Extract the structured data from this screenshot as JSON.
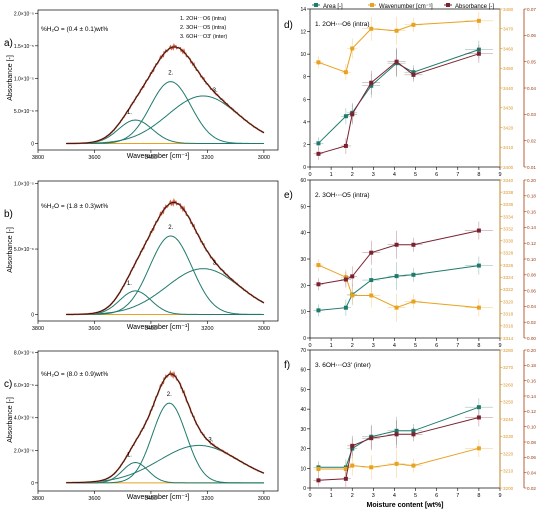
{
  "colors": {
    "measured": "#c9543a",
    "fit_total": "#2b1610",
    "peak": "#1f7a6c",
    "baseline": "#e8a21f",
    "area": "#1f7a6c",
    "wavenumber": "#e8a21f",
    "absorbance": "#7a2230",
    "wn_axis_text": "#d9962a",
    "abs_axis_text": "#9c3b12"
  },
  "chart_data": [
    {
      "type": "line",
      "panel": "a)",
      "annotation": "%H₂O = (0.4 ± 0.1)wt%",
      "xlabel": "Wavenumber [cm⁻¹]",
      "ylabel": "Absorbance [-]",
      "xlim": [
        3800,
        2950
      ],
      "xticks": [
        "3800",
        "3600",
        "3400",
        "3200",
        "3000"
      ],
      "ylim": [
        -1e-06,
        2.05e-05
      ],
      "yticks": [
        "0",
        "5.0×10⁻⁶",
        "1.0×10⁻⁵",
        "1.5×10⁻⁵",
        "2.0×10⁻⁵"
      ],
      "legend": [
        "1.   2OH⋯O6 (intra)",
        "2.   3OH⋯O5 (intra)",
        "3.   6OH⋯O3' (inter)"
      ],
      "peak_labels": [
        "1.",
        "2.",
        "3."
      ],
      "peaks": [
        {
          "center": 3455,
          "height": 3.6e-06,
          "width": 60
        },
        {
          "center": 3330,
          "height": 9.5e-06,
          "width": 72
        },
        {
          "center": 3215,
          "height": 7.3e-06,
          "width": 125
        }
      ]
    },
    {
      "type": "line",
      "panel": "b)",
      "annotation": "%H₂O = (1.8 ± 0.3)wt%",
      "xlabel": "Wavenumber [cm⁻¹]",
      "ylabel": "Absorbance [-]",
      "xlim": [
        3800,
        2950
      ],
      "xticks": [
        "3800",
        "3600",
        "3400",
        "3200",
        "3000"
      ],
      "ylim": [
        -5e-07,
        1.02e-05
      ],
      "yticks": [
        "0",
        "5.0×10⁻⁶",
        "1.0×10⁻⁵"
      ],
      "peak_labels": [
        "1.",
        "2.",
        "3."
      ],
      "peaks": [
        {
          "center": 3455,
          "height": 1.8e-06,
          "width": 55
        },
        {
          "center": 3330,
          "height": 6e-06,
          "width": 75
        },
        {
          "center": 3215,
          "height": 3.5e-06,
          "width": 130
        }
      ]
    },
    {
      "type": "line",
      "panel": "c)",
      "annotation": "%H₂O = (8.0 ± 0.9)wt%",
      "xlabel": "Wavenumber [cm⁻¹]",
      "ylabel": "Absorbance [-]",
      "xlim": [
        3800,
        2950
      ],
      "xticks": [
        "3800",
        "3600",
        "3400",
        "3200",
        "3000"
      ],
      "ylim": [
        -5e-07,
        8.1e-06
      ],
      "yticks": [
        "0",
        "2.0×10⁻⁶",
        "4.0×10⁻⁶",
        "6.0×10⁻⁶",
        "8.0×10⁻⁶"
      ],
      "peak_labels": [
        "1.",
        "2.",
        "3."
      ],
      "peaks": [
        {
          "center": 3455,
          "height": 1.25e-06,
          "width": 45
        },
        {
          "center": 3335,
          "height": 4.9e-06,
          "width": 60
        },
        {
          "center": 3230,
          "height": 2.3e-06,
          "width": 140
        }
      ]
    },
    {
      "type": "line",
      "panel": "d)",
      "title": "1. 2OH⋯O6 (intra)",
      "legend": [
        "Area [-]",
        "Wavenumber [cm⁻¹]",
        "Absorbance [-]"
      ],
      "x": [
        0.4,
        1.7,
        2.0,
        2.9,
        4.1,
        4.9,
        8.0
      ],
      "area": [
        2.1,
        4.5,
        4.8,
        7.2,
        9.2,
        8.4,
        10.4
      ],
      "area_ylim": [
        0,
        14
      ],
      "area_yticks": [
        "0",
        "2",
        "4",
        "6",
        "8",
        "10",
        "12",
        "14"
      ],
      "wavenumber": [
        3453,
        3448,
        3460,
        3470,
        3469,
        3472,
        3474
      ],
      "wn_ylim": [
        3400,
        3480
      ],
      "wn_yticks": [
        "3400",
        "3410",
        "3420",
        "3430",
        "3440",
        "3450",
        "3460",
        "3470",
        "3480"
      ],
      "absorbance": [
        0.015,
        0.018,
        0.03,
        0.042,
        0.05,
        0.045,
        0.053
      ],
      "abs_ylim": [
        0.01,
        0.07
      ],
      "abs_yticks": [
        "0.01",
        "0.02",
        "0.03",
        "0.04",
        "0.05",
        "0.06",
        "0.07"
      ],
      "xlim": [
        0,
        9
      ],
      "xticks": [
        "0",
        "1",
        "2",
        "3",
        "4",
        "5",
        "6",
        "7",
        "8",
        "9"
      ]
    },
    {
      "type": "line",
      "panel": "e)",
      "title": "2. 3OH⋯O5 (intra)",
      "x": [
        0.4,
        1.7,
        2.0,
        2.9,
        4.1,
        4.9,
        8.0
      ],
      "area": [
        10.5,
        11.5,
        16.5,
        22.0,
        23.5,
        24.0,
        27.5
      ],
      "area_ylim": [
        0,
        60
      ],
      "area_yticks": [
        "0",
        "10",
        "20",
        "30",
        "40",
        "50",
        "60"
      ],
      "wavenumber": [
        3326,
        3324,
        3321,
        3321,
        3319,
        3320,
        3319
      ],
      "wn_ylim": [
        3314,
        3340
      ],
      "wn_yticks": [
        "3314",
        "3316",
        "3318",
        "3320",
        "3322",
        "3324",
        "3326",
        "3328",
        "3330",
        "3332",
        "3334",
        "3336",
        "3338",
        "3340"
      ],
      "absorbance": [
        0.068,
        0.074,
        0.078,
        0.108,
        0.118,
        0.118,
        0.136
      ],
      "abs_ylim": [
        0,
        0.2
      ],
      "abs_yticks": [
        "0.00",
        "0.02",
        "0.04",
        "0.06",
        "0.08",
        "0.10",
        "0.12",
        "0.14",
        "0.16",
        "0.18",
        "0.20"
      ],
      "xlim": [
        0,
        9
      ],
      "xticks": [
        "0",
        "1",
        "2",
        "3",
        "4",
        "5",
        "6",
        "7",
        "8",
        "9"
      ]
    },
    {
      "type": "line",
      "panel": "f)",
      "title": "3. 6OH⋯O3' (inter)",
      "xlabel": "Moisture content [wt%]",
      "x": [
        0.4,
        1.7,
        2.0,
        2.9,
        4.1,
        4.9,
        8.0
      ],
      "area": [
        10.5,
        10.5,
        20.0,
        26.0,
        29.0,
        29.0,
        41.0
      ],
      "area_ylim": [
        0,
        70
      ],
      "area_yticks": [
        "0",
        "10",
        "20",
        "30",
        "40",
        "50",
        "60",
        "70"
      ],
      "wavenumber": [
        3211,
        3211,
        3213,
        3212,
        3214,
        3213,
        3223
      ],
      "wn_ylim": [
        3200,
        3280
      ],
      "wn_yticks": [
        "3200",
        "3210",
        "3220",
        "3230",
        "3240",
        "3250",
        "3260",
        "3270",
        "3280"
      ],
      "absorbance": [
        0.03,
        0.032,
        0.075,
        0.085,
        0.09,
        0.09,
        0.112
      ],
      "abs_ylim": [
        0.02,
        0.2
      ],
      "abs_yticks": [
        "0.02",
        "0.04",
        "0.06",
        "0.08",
        "0.10",
        "0.12",
        "0.14",
        "0.16",
        "0.18",
        "0.20"
      ],
      "xlim": [
        0,
        9
      ],
      "xticks": [
        "0",
        "1",
        "2",
        "3",
        "4",
        "5",
        "6",
        "7",
        "8",
        "9"
      ]
    }
  ]
}
